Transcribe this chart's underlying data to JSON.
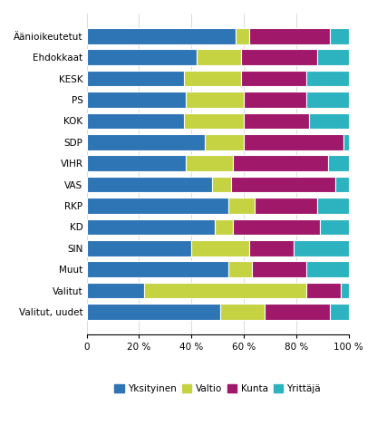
{
  "categories": [
    "Äänioikeutetut",
    "Ehdokkaat",
    "KESK",
    "PS",
    "KOK",
    "SDP",
    "VIHR",
    "VAS",
    "RKP",
    "KD",
    "SIN",
    "Muut",
    "Valitut",
    "Valitut, uudet"
  ],
  "Yksityinen": [
    57,
    42,
    37,
    38,
    37,
    45,
    38,
    48,
    54,
    49,
    40,
    54,
    22,
    51
  ],
  "Valtio": [
    5,
    17,
    22,
    22,
    23,
    15,
    18,
    7,
    10,
    7,
    22,
    9,
    62,
    17
  ],
  "Kunta": [
    31,
    29,
    25,
    24,
    25,
    38,
    36,
    40,
    24,
    33,
    17,
    21,
    13,
    25
  ],
  "Yrittäjä": [
    7,
    12,
    16,
    16,
    15,
    2,
    8,
    5,
    12,
    11,
    21,
    16,
    3,
    7
  ],
  "colors": {
    "Yksityinen": "#2e75b6",
    "Valtio": "#c5d343",
    "Kunta": "#a0186a",
    "Yrittäjä": "#2db3c0"
  },
  "legend_labels": [
    "Yksityinen",
    "Valtio",
    "Kunta",
    "Yrittäjä"
  ],
  "background_color": "#ffffff",
  "figsize": [
    4.16,
    4.91
  ],
  "dpi": 100
}
